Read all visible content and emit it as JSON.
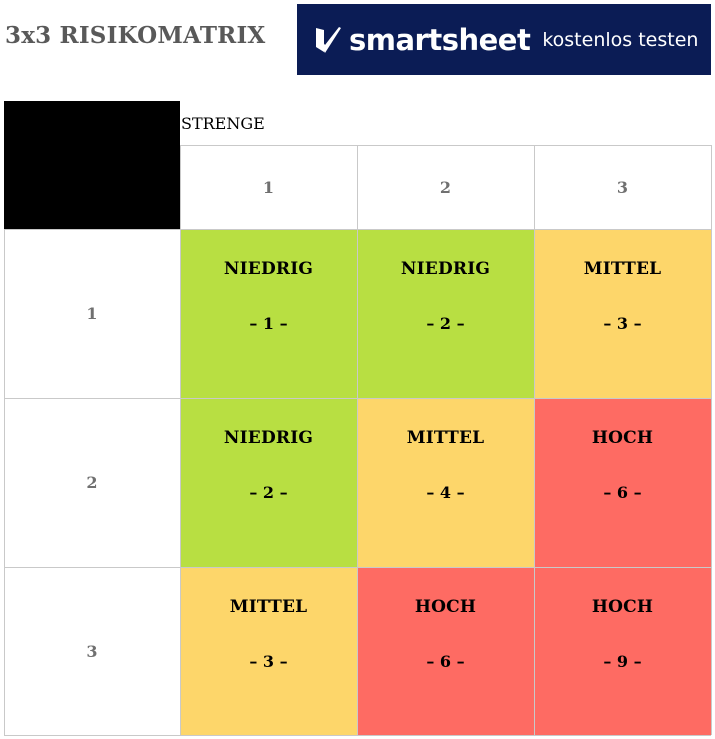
{
  "title": "3x3 RISIKOMATRIX",
  "banner": {
    "brand": "smartsheet",
    "cta": "kostenlos testen",
    "background": "#0b1c55"
  },
  "axis_label": "STRENGE",
  "column_headers": [
    "1",
    "2",
    "3"
  ],
  "row_headers": [
    "1",
    "2",
    "3"
  ],
  "colors": {
    "NIEDRIG": "#b8df42",
    "MITTEL": "#fdd66a",
    "HOCH": "#fe6b63"
  },
  "rows": [
    [
      {
        "level": "NIEDRIG",
        "score": "– 1 –"
      },
      {
        "level": "NIEDRIG",
        "score": "– 2 –"
      },
      {
        "level": "MITTEL",
        "score": "– 3 –"
      }
    ],
    [
      {
        "level": "NIEDRIG",
        "score": "– 2 –"
      },
      {
        "level": "MITTEL",
        "score": "– 4 –"
      },
      {
        "level": "HOCH",
        "score": "– 6 –"
      }
    ],
    [
      {
        "level": "MITTEL",
        "score": "– 3 –"
      },
      {
        "level": "HOCH",
        "score": "– 6 –"
      },
      {
        "level": "HOCH",
        "score": "– 9 –"
      }
    ]
  ]
}
